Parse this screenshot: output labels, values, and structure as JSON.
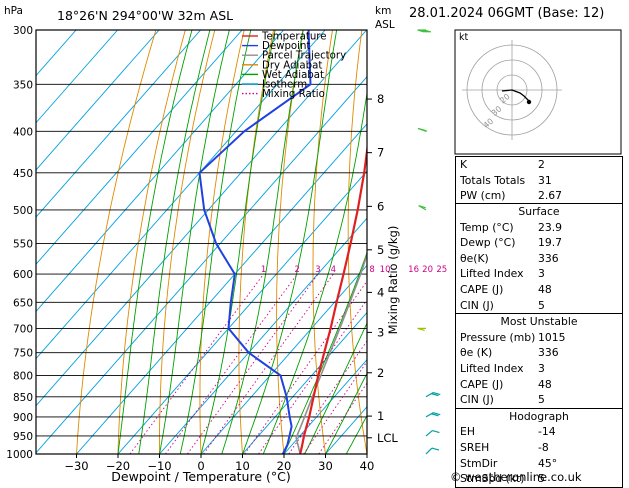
{
  "header": {
    "station": "18°26'N  294°00'W  32m  ASL",
    "date": "28.01.2024  06GMT  (Base: 12)",
    "pressure_unit": "hPa",
    "km_unit_1": "km",
    "km_unit_2": "ASL"
  },
  "chart_data": {
    "type": "line",
    "title": "18°26'N  294°00'W  32m  ASL",
    "xlabel": "Dewpoint / Temperature (°C)",
    "ylabel": "hPa",
    "y2label": "Mixing Ratio (g/kg)",
    "xlim": [
      -35,
      40
    ],
    "ylim": [
      1000,
      300
    ],
    "x_ticks": [
      -30,
      -20,
      -10,
      0,
      10,
      20,
      30,
      40
    ],
    "pressure_levels": [
      300,
      350,
      400,
      450,
      500,
      550,
      600,
      650,
      700,
      750,
      800,
      850,
      900,
      950,
      1000
    ],
    "km_ticks": [
      {
        "label": "8",
        "p": 365
      },
      {
        "label": "7",
        "p": 425
      },
      {
        "label": "6",
        "p": 495
      },
      {
        "label": "5",
        "p": 560
      },
      {
        "label": "4",
        "p": 632
      },
      {
        "label": "3",
        "p": 708
      },
      {
        "label": "2",
        "p": 794
      },
      {
        "label": "1",
        "p": 898
      },
      {
        "label": "LCL",
        "p": 955
      }
    ],
    "mixing_ratio_labels": [
      "1",
      "2",
      "3",
      "4",
      "8",
      "10",
      "16",
      "20",
      "25"
    ],
    "mixing_ratio_values": [
      1,
      2,
      3,
      4,
      8,
      10,
      16,
      20,
      25
    ],
    "legend": {
      "placement": "top-left",
      "entries": [
        {
          "name": "Temperature",
          "color": "#e02020"
        },
        {
          "name": "Dewpoint",
          "color": "#2040e0"
        },
        {
          "name": "Parcel Trajectory",
          "color": "#909090"
        },
        {
          "name": "Dry Adiabat",
          "color": "#e08a00"
        },
        {
          "name": "Wet Adiabat",
          "color": "#00a000"
        },
        {
          "name": "Isotherm",
          "color": "#00a0e0"
        },
        {
          "name": "Mixing Ratio",
          "color": "#d0008a"
        }
      ]
    },
    "series": [
      {
        "name": "Temperature",
        "color": "#e02020",
        "p": [
          1000,
          975,
          950,
          925,
          900,
          850,
          800,
          750,
          700,
          650,
          600,
          550,
          500,
          450,
          400,
          370,
          350,
          300
        ],
        "t": [
          23.9,
          22.5,
          21.0,
          19.6,
          18.2,
          15.0,
          11.6,
          8.2,
          4.6,
          0.5,
          -3.8,
          -8.6,
          -14.0,
          -20.3,
          -27.8,
          -33.0,
          -37.0,
          -46.0
        ]
      },
      {
        "name": "Dewpoint",
        "color": "#2040e0",
        "p": [
          1000,
          975,
          950,
          925,
          900,
          850,
          800,
          750,
          700,
          650,
          600,
          550,
          500,
          450,
          400,
          350,
          300
        ],
        "t": [
          19.7,
          18.9,
          17.5,
          16.0,
          13.5,
          8.5,
          2.5,
          -10.0,
          -20.0,
          -25.0,
          -30.0,
          -41.0,
          -51.0,
          -60.0,
          -58.0,
          -52.0,
          -64.0
        ]
      },
      {
        "name": "Parcel Trajectory",
        "color": "#909090",
        "p": [
          1000,
          955,
          900,
          850,
          800,
          750,
          700,
          650,
          600,
          550,
          500,
          450,
          400,
          350,
          300
        ],
        "t": [
          23.9,
          19.5,
          17.1,
          14.7,
          12.2,
          9.6,
          6.8,
          3.7,
          0.3,
          -3.7,
          -8.3,
          -13.9,
          -20.7,
          -29.5,
          -40.5
        ]
      }
    ]
  },
  "wind_barbs": [
    {
      "p": 300,
      "dir": 270,
      "speed_kt": 35
    },
    {
      "p": 400,
      "dir": 290,
      "speed_kt": 20
    },
    {
      "p": 500,
      "dir": 300,
      "speed_kt": 10
    },
    {
      "p": 700,
      "dir": 270,
      "speed_kt": 10
    },
    {
      "p": 850,
      "dir": 60,
      "speed_kt": 15
    },
    {
      "p": 900,
      "dir": 60,
      "speed_kt": 15
    },
    {
      "p": 950,
      "dir": 50,
      "speed_kt": 10
    },
    {
      "p": 1000,
      "dir": 45,
      "speed_kt": 5
    }
  ],
  "hodograph": {
    "unit_label": "kt",
    "ring_labels": [
      "20",
      "30",
      "40"
    ]
  },
  "indices": {
    "rows": [
      {
        "label": "K",
        "value": "2"
      },
      {
        "label": "Totals Totals",
        "value": "31"
      },
      {
        "label": "PW (cm)",
        "value": "2.67"
      }
    ]
  },
  "surface": {
    "title": "Surface",
    "rows": [
      {
        "label": "Temp (°C)",
        "value": "23.9"
      },
      {
        "label": "Dewp (°C)",
        "value": "19.7"
      },
      {
        "label": "θe(K)",
        "value": "336"
      },
      {
        "label": "Lifted Index",
        "value": "3"
      },
      {
        "label": "CAPE (J)",
        "value": "48"
      },
      {
        "label": "CIN (J)",
        "value": "5"
      }
    ]
  },
  "most_unstable": {
    "title": "Most Unstable",
    "rows": [
      {
        "label": "Pressure (mb)",
        "value": "1015"
      },
      {
        "label": "θe (K)",
        "value": "336"
      },
      {
        "label": "Lifted Index",
        "value": "3"
      },
      {
        "label": "CAPE (J)",
        "value": "48"
      },
      {
        "label": "CIN (J)",
        "value": "5"
      }
    ]
  },
  "hodograph_table": {
    "title": "Hodograph",
    "rows": [
      {
        "label": "EH",
        "value": "-14"
      },
      {
        "label": "SREH",
        "value": "-8"
      },
      {
        "label": "StmDir",
        "value": "45°"
      },
      {
        "label": "StmSpd (kt)",
        "value": "5"
      }
    ]
  },
  "footer": "© weatheronline.co.uk"
}
